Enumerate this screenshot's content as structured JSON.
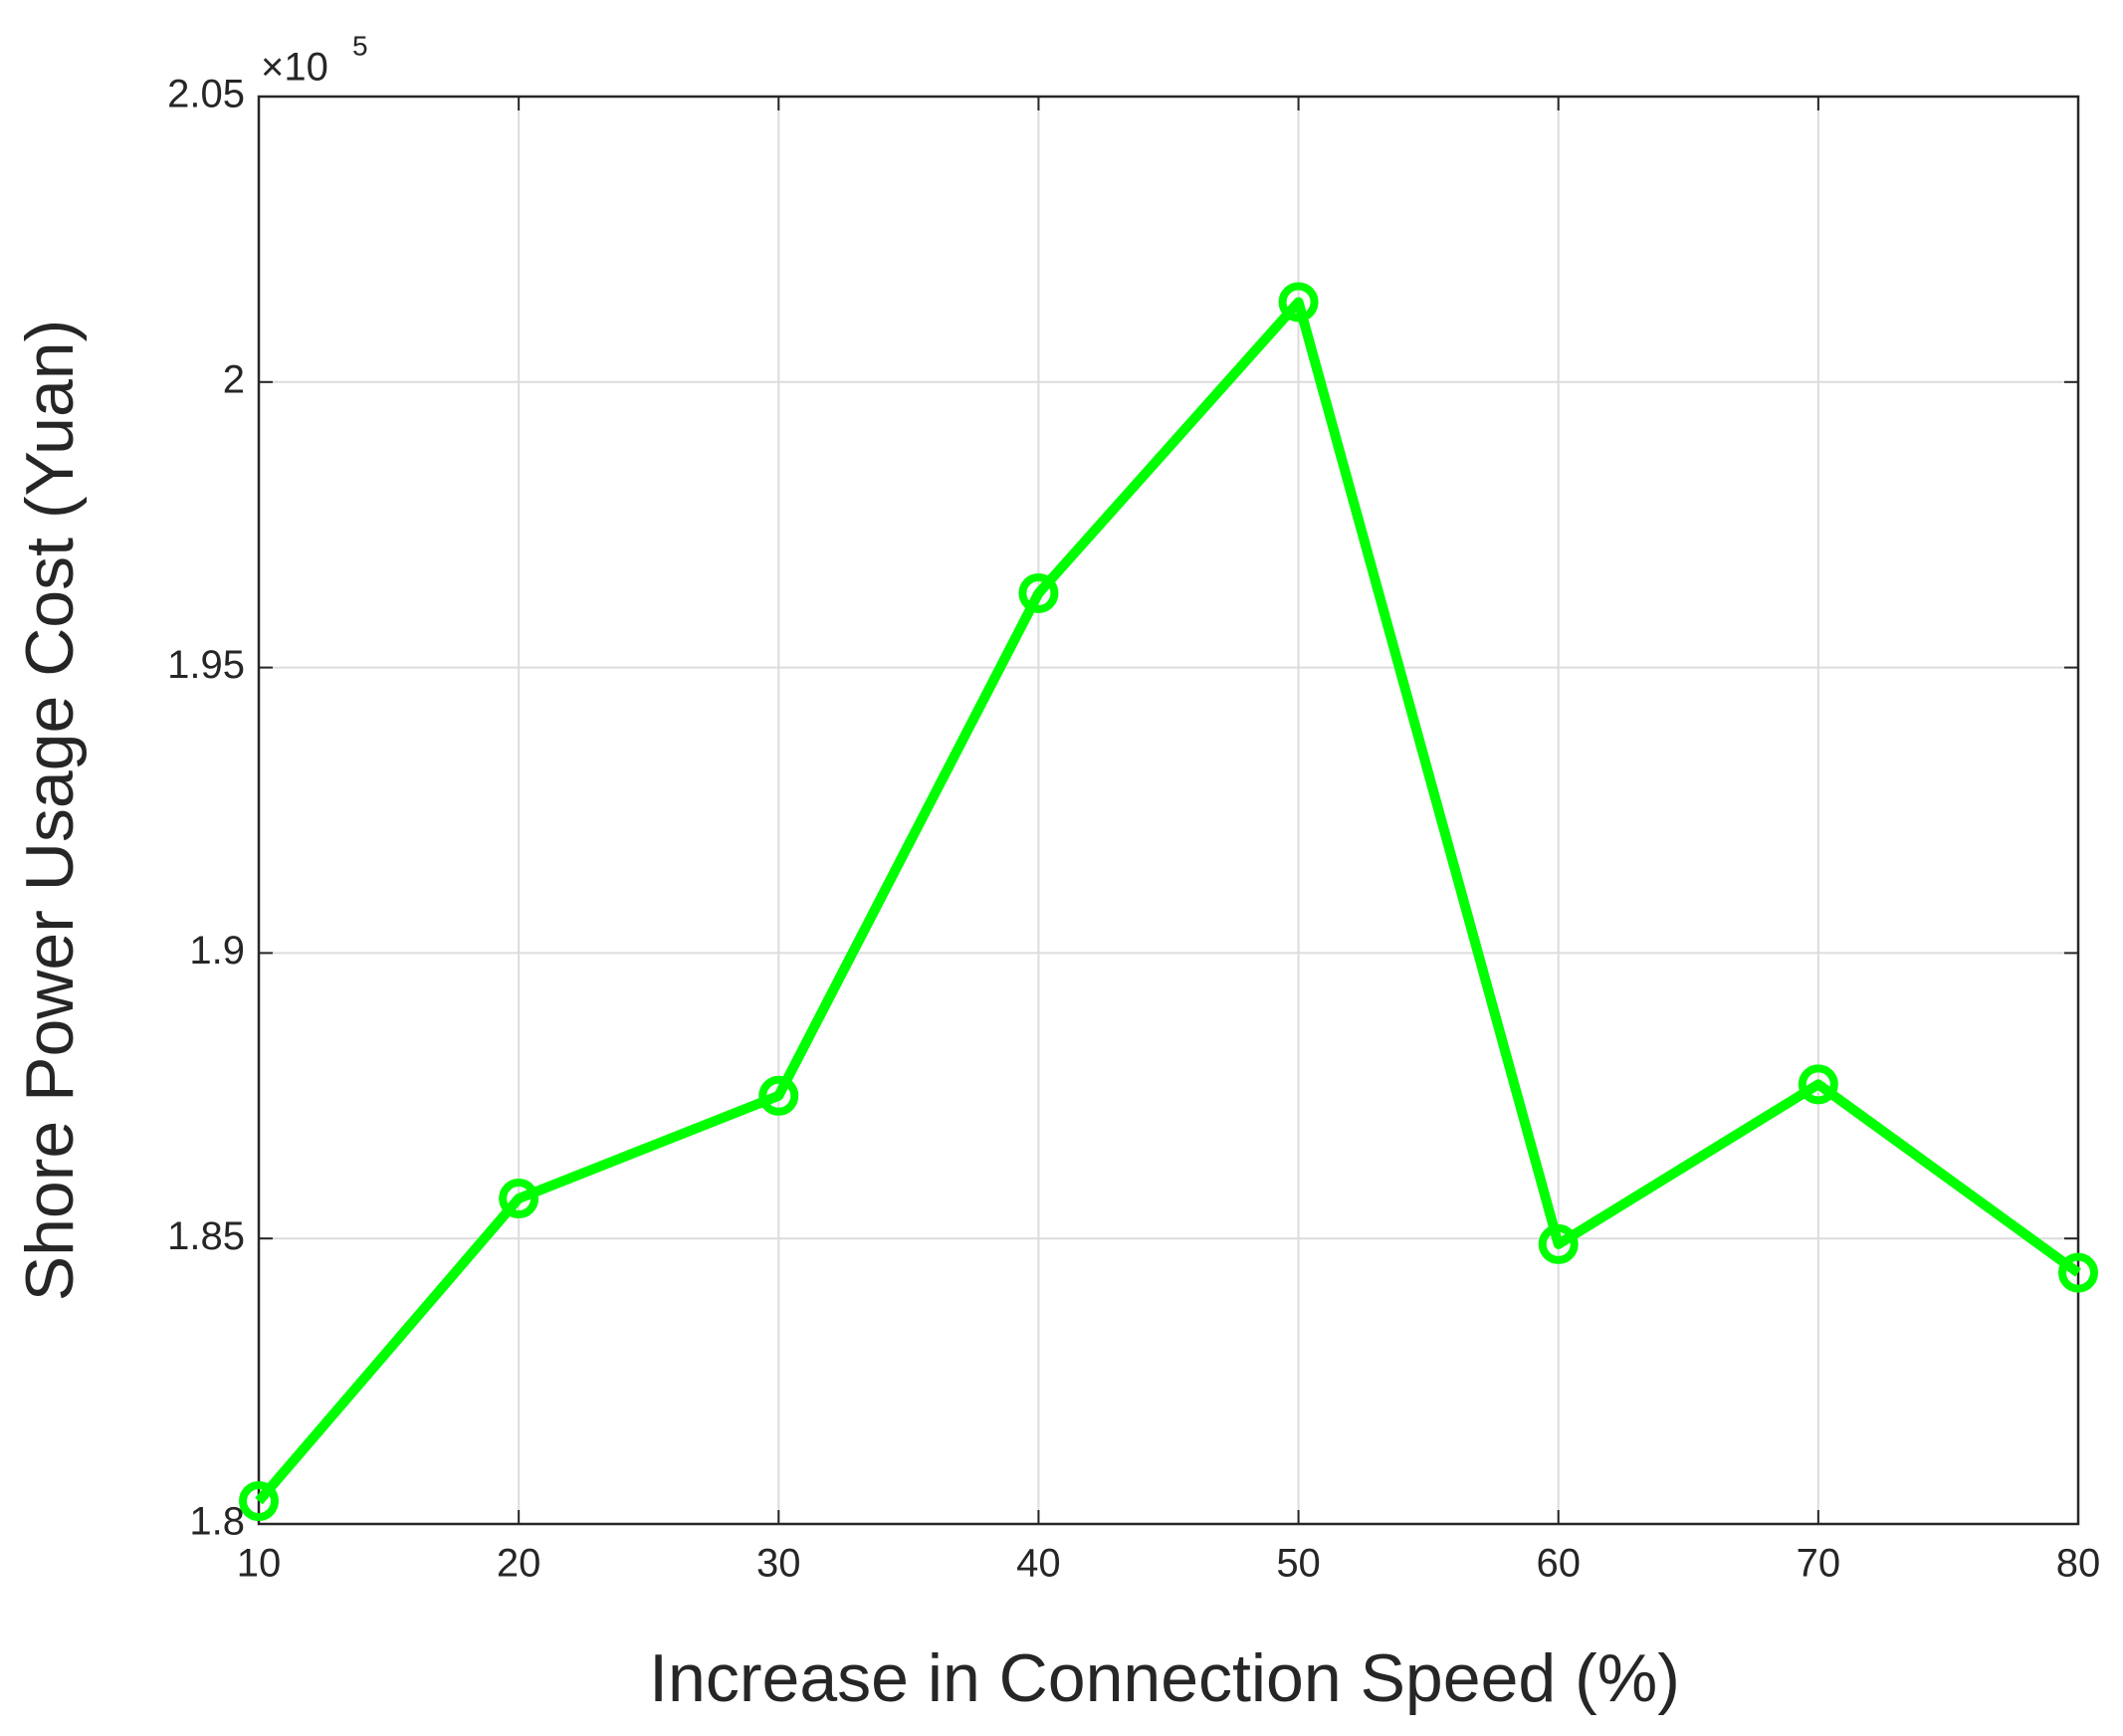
{
  "chart_data": {
    "type": "line",
    "x_label": "Increase in Connection Speed (%)",
    "y_label": "Shore Power Usage Cost (Yuan)",
    "y_multiplier": "×10",
    "y_multiplier_exponent": "5",
    "x": [
      10,
      20,
      30,
      40,
      50,
      60,
      70,
      80
    ],
    "series": [
      {
        "color": "#00ff00",
        "values": [
          1.804,
          1.857,
          1.875,
          1.963,
          2.014,
          1.849,
          1.877,
          1.844
        ]
      }
    ],
    "xlim": [
      10,
      80
    ],
    "xticks": [
      10,
      20,
      30,
      40,
      50,
      60,
      70,
      80
    ],
    "ylim": [
      1.8,
      2.05
    ],
    "yticks": [
      1.8,
      1.85,
      1.9,
      1.95,
      2,
      2.05
    ],
    "grid": true
  }
}
